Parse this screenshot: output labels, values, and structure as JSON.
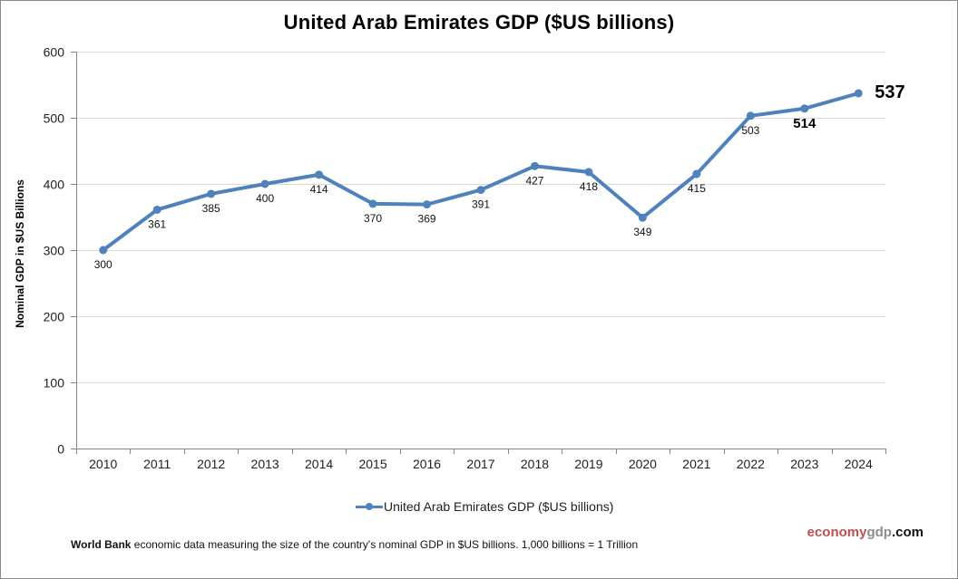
{
  "chart_data": {
    "type": "line",
    "title": "United Arab Emirates GDP ($US billions)",
    "xlabel": "",
    "ylabel": "Nominal GDP in $US Billions",
    "ylim": [
      0,
      600
    ],
    "yticks": [
      0,
      100,
      200,
      300,
      400,
      500,
      600
    ],
    "grid": true,
    "legend_position": "bottom",
    "categories": [
      "2010",
      "2011",
      "2012",
      "2013",
      "2014",
      "2015",
      "2016",
      "2017",
      "2018",
      "2019",
      "2020",
      "2021",
      "2022",
      "2023",
      "2024"
    ],
    "series": [
      {
        "name": "United Arab Emirates GDP ($US billions)",
        "color": "#4f81bd",
        "values": [
          300,
          361,
          385,
          400,
          414,
          370,
          369,
          391,
          427,
          418,
          349,
          415,
          503,
          514,
          537
        ],
        "labels": [
          "300",
          "361",
          "385",
          "400",
          "414",
          "370",
          "369",
          "391",
          "427",
          "418",
          "349",
          "415",
          "503",
          "514",
          "537"
        ],
        "emphasized_labels": [
          "514",
          "537"
        ]
      }
    ]
  },
  "legend": {
    "label": "United Arab Emirates GDP ($US billions)"
  },
  "footnote": {
    "source": "World Bank",
    "text": " economic data  measuring the size of the country's nominal GDP in $US billions. 1,000 billions = 1 Trillion"
  },
  "brand": {
    "part1": "economy",
    "part2": "gdp",
    "part3": ".com"
  },
  "colors": {
    "line": "#4f81bd",
    "grid": "#d9d9d9",
    "axis": "#868686",
    "brand_red": "#c0504d",
    "brand_gray": "#8c8c8c"
  }
}
